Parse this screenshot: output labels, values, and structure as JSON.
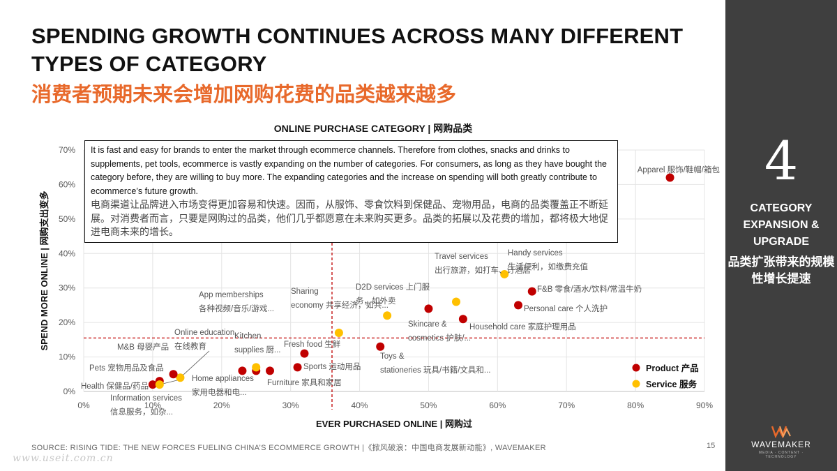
{
  "header": {
    "title_en": "SPENDING GROWTH CONTINUES ACROSS MANY DIFFERENT TYPES OF CATEGORY",
    "title_cn": "消费者预期未来会增加网购花费的品类越来越多"
  },
  "note": {
    "en": "It is fast and easy for brands to enter the market through ecommerce channels. Therefore from clothes, snacks and drinks to supplements, pet tools, ecommerce is vastly expanding on the number of categories. For consumers, as long as they have bought the category before, they are willing to buy more. The expanding categories and the increase on spending will both greatly contribute to ecommerce’s future growth.",
    "cn": "电商渠道让品牌进入市场变得更加容易和快速。因而，从服饰、零食饮料到保健品、宠物用品，电商的品类覆盖正不断延展。对消费者而言，只要是网购过的品类，他们几乎都愿意在未来购买更多。品类的拓展以及花费的增加，都将极大地促进电商未来的增长。"
  },
  "sidebar": {
    "number": "4",
    "label_en": "CATEGORY EXPANSION & UPGRADE",
    "label_cn": "品类扩张带来的规模性增长提速"
  },
  "footer": {
    "source": "SOURCE: RISING TIDE: THE NEW FORCES FUELING CHINA’S ECOMMERCE GROWTH |《掀风破浪：中国电商发展新动能》, WAVEMAKER",
    "page": "15",
    "watermark": "www.useit.com.cn"
  },
  "logo": {
    "text": "WAVEMAKER",
    "sub": "MEDIA · CONTENT · TECHNOLOGY"
  },
  "colors": {
    "accent": "#e8692b",
    "product": "#c00000",
    "service": "#ffc000",
    "sidebar": "#3f3f3f",
    "reference": "#c00000"
  },
  "chart_data": {
    "type": "scatter",
    "title": "ONLINE PURCHASE CATEGORY | 网购品类",
    "xlabel": "EVER PURCHASED ONLINE | 网购过",
    "ylabel": "SPEND MORE ONLINE | 网购支出变多",
    "xlim": [
      0,
      90
    ],
    "ylim": [
      0,
      70
    ],
    "x_ticks": [
      "0%",
      "10%",
      "20%",
      "30%",
      "40%",
      "50%",
      "60%",
      "70%",
      "80%",
      "90%"
    ],
    "y_ticks": [
      "0%",
      "10%",
      "20%",
      "30%",
      "40%",
      "50%",
      "60%",
      "70%"
    ],
    "reference_lines": {
      "x": 36,
      "y": 15.5
    },
    "legend": {
      "position": "bottom-right",
      "items": [
        {
          "name": "Product 产品",
          "series": "product"
        },
        {
          "name": "Service  服务",
          "series": "service"
        }
      ]
    },
    "points": [
      {
        "label": "Apparel 服饰/鞋帽/箱包",
        "x": 85,
        "y": 62,
        "series": "product"
      },
      {
        "label": "Handy services 生活便利，如缴费充值",
        "x": 61,
        "y": 34,
        "series": "service"
      },
      {
        "label": "F&B 零食/酒水/饮料/常温牛奶",
        "x": 65,
        "y": 29,
        "series": "product"
      },
      {
        "label": "Personal care 个人洗护",
        "x": 63,
        "y": 25,
        "series": "product"
      },
      {
        "label": "Travel services 出行旅游，如打车、订酒店",
        "x": 54,
        "y": 26,
        "series": "service"
      },
      {
        "label": "D2D services 上门服务，如外卖",
        "x": 50,
        "y": 24,
        "series": "product"
      },
      {
        "label": "Household care 家庭护理用品",
        "x": 55,
        "y": 21,
        "series": "product"
      },
      {
        "label": "Sharing economy 共享经济，如共...",
        "x": 44,
        "y": 22,
        "series": "service"
      },
      {
        "label": "Skincare & cosmetics 护肤/...",
        "x": 37,
        "y": 17,
        "series": "service"
      },
      {
        "label": "Toys & stationeries 玩具/书籍/文具和...",
        "x": 43,
        "y": 13,
        "series": "product"
      },
      {
        "label": "Fresh food 生鲜",
        "x": 32,
        "y": 11,
        "series": "product"
      },
      {
        "label": "Sports 运动用品",
        "x": 31,
        "y": 7,
        "series": "product"
      },
      {
        "label": "Furniture 家具和家居",
        "x": 27,
        "y": 6,
        "series": "product"
      },
      {
        "label": "Kitchen supplies 厨...",
        "x": 25,
        "y": 6,
        "series": "product"
      },
      {
        "label": "Home appliances 家用电器和电...",
        "x": 23,
        "y": 6,
        "series": "product"
      },
      {
        "label": "App memberships 各种视频/音乐/游戏...",
        "x": 25,
        "y": 7,
        "series": "service"
      },
      {
        "label": "Online education 在线教育",
        "x": 14,
        "y": 4,
        "series": "service"
      },
      {
        "label": "M&B 母婴产品",
        "x": 13,
        "y": 5,
        "series": "product"
      },
      {
        "label": "Pets 宠物用品及食品",
        "x": 11,
        "y": 3,
        "series": "product"
      },
      {
        "label": "Health 保健品/药品",
        "x": 10,
        "y": 2,
        "series": "product"
      },
      {
        "label": "Information services 信息服务，如杂...",
        "x": 11,
        "y": 2,
        "series": "service"
      }
    ]
  }
}
